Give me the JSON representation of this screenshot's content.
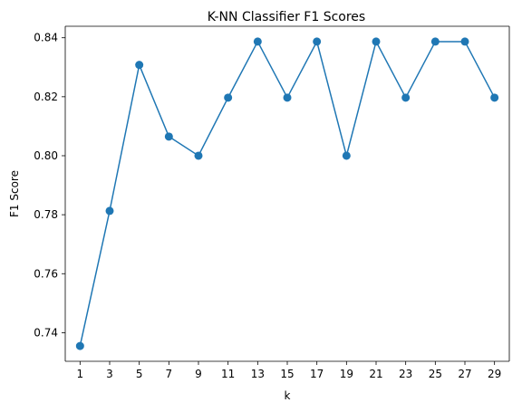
{
  "chart_data": {
    "type": "line",
    "title": "K-NN Classifier F1 Scores",
    "xlabel": "k",
    "ylabel": "F1 Score",
    "x": [
      1,
      3,
      5,
      7,
      9,
      11,
      13,
      15,
      17,
      19,
      21,
      23,
      25,
      27,
      29
    ],
    "series": [
      {
        "values": [
          0.7355,
          0.7813,
          0.8308,
          0.8065,
          0.8,
          0.8197,
          0.8387,
          0.8197,
          0.8387,
          0.8,
          0.8387,
          0.8197,
          0.8387,
          0.8387,
          0.8197
        ],
        "color": "#1f77b4",
        "marker": "circle"
      }
    ],
    "xticks": [
      "1",
      "3",
      "5",
      "7",
      "9",
      "11",
      "13",
      "15",
      "17",
      "19",
      "21",
      "23",
      "25",
      "27",
      "29"
    ],
    "yticks": [
      "0.74",
      "0.76",
      "0.78",
      "0.80",
      "0.82",
      "0.84"
    ],
    "xlim": [
      0,
      30
    ],
    "ylim": [
      0.7303,
      0.8439
    ],
    "grid": false,
    "legend": false
  }
}
